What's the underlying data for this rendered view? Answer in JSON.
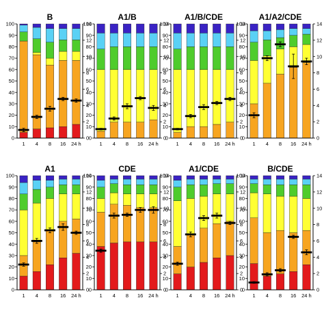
{
  "chart_data": [
    {
      "type": "bar",
      "title": "B",
      "categories": [
        "1",
        "4",
        "8",
        "16",
        "24 h"
      ],
      "ylim": [
        0,
        100
      ],
      "y2lim": [
        0,
        14
      ],
      "yticks": [
        0,
        10,
        20,
        30,
        40,
        50,
        60,
        70,
        80,
        90,
        100
      ],
      "y2ticks": [
        0,
        2,
        4,
        6,
        8,
        10,
        12,
        14
      ],
      "stack_colors": [
        "#e31a1c",
        "#f7a520",
        "#ffff33",
        "#4fcc2c",
        "#5ad1f5",
        "#3a23c4"
      ],
      "series": [
        {
          "name": "",
          "values": [
            [
              5,
              80,
              0,
              8,
              6,
              1
            ],
            [
              8,
              65,
              2,
              12,
              10,
              3
            ],
            [
              9,
              55,
              6,
              14,
              12,
              4
            ],
            [
              10,
              58,
              8,
              10,
              10,
              4
            ],
            [
              12,
              56,
              8,
              10,
              10,
              4
            ]
          ]
        }
      ],
      "markers": [
        1.0,
        2.6,
        3.6,
        4.8,
        4.6
      ],
      "marker_err": [
        0.2,
        0.2,
        0.3,
        0.2,
        0.2
      ]
    },
    {
      "type": "bar",
      "title": "A1/B",
      "categories": [
        "1",
        "4",
        "8",
        "16",
        "24 h"
      ],
      "ylim": [
        0,
        100
      ],
      "y2lim": [
        0,
        14
      ],
      "yticks": [
        0,
        10,
        20,
        30,
        40,
        50,
        60,
        70,
        80,
        90,
        100
      ],
      "y2ticks": [
        0,
        2,
        4,
        6,
        8,
        10,
        12,
        14
      ],
      "stack_colors": [
        "#e31a1c",
        "#f7a520",
        "#ffff33",
        "#4fcc2c",
        "#5ad1f5",
        "#3a23c4"
      ],
      "series": [
        {
          "name": "",
          "values": [
            [
              0,
              6,
              54,
              18,
              14,
              8
            ],
            [
              0,
              14,
              46,
              20,
              12,
              8
            ],
            [
              0,
              14,
              46,
              20,
              12,
              8
            ],
            [
              0,
              14,
              46,
              20,
              12,
              8
            ],
            [
              0,
              16,
              44,
              20,
              12,
              8
            ]
          ]
        }
      ],
      "markers": [
        1.1,
        2.4,
        3.9,
        4.9,
        3.7
      ],
      "marker_err": [
        0.1,
        0.2,
        0.3,
        0.2,
        0.3
      ]
    },
    {
      "type": "bar",
      "title": "A1/B/CDE",
      "categories": [
        "1",
        "4",
        "8",
        "16",
        "24 h"
      ],
      "ylim": [
        0,
        100
      ],
      "y2lim": [
        0,
        14
      ],
      "yticks": [
        0,
        10,
        20,
        30,
        40,
        50,
        60,
        70,
        80,
        90,
        100
      ],
      "y2ticks": [
        0,
        2,
        4,
        6,
        8,
        10,
        12,
        14
      ],
      "stack_colors": [
        "#e31a1c",
        "#f7a520",
        "#ffff33",
        "#4fcc2c",
        "#5ad1f5",
        "#3a23c4"
      ],
      "series": [
        {
          "name": "",
          "values": [
            [
              0,
              5,
              55,
              18,
              14,
              8
            ],
            [
              0,
              10,
              50,
              20,
              12,
              8
            ],
            [
              0,
              10,
              50,
              20,
              12,
              8
            ],
            [
              0,
              12,
              48,
              20,
              12,
              8
            ],
            [
              0,
              14,
              46,
              20,
              12,
              8
            ]
          ]
        }
      ],
      "markers": [
        1.1,
        2.7,
        3.8,
        4.3,
        4.8
      ],
      "marker_err": [
        0.1,
        0.2,
        0.3,
        0.2,
        0.2
      ]
    },
    {
      "type": "bar",
      "title": "A1/A2/CDE",
      "categories": [
        "1",
        "4",
        "8",
        "16",
        "24 h"
      ],
      "ylim": [
        0,
        100
      ],
      "y2lim": [
        0,
        14
      ],
      "yticks": [
        0,
        10,
        20,
        30,
        40,
        50,
        60,
        70,
        80,
        90,
        100
      ],
      "y2ticks": [
        0,
        2,
        4,
        6,
        8,
        10,
        12,
        14
      ],
      "stack_colors": [
        "#e31a1c",
        "#f7a520",
        "#ffff33",
        "#4fcc2c",
        "#5ad1f5",
        "#3a23c4"
      ],
      "series": [
        {
          "name": "",
          "values": [
            [
              0,
              30,
              38,
              16,
              10,
              6
            ],
            [
              0,
              48,
              24,
              14,
              8,
              6
            ],
            [
              0,
              56,
              22,
              10,
              7,
              5
            ],
            [
              0,
              62,
              18,
              10,
              6,
              4
            ],
            [
              0,
              66,
              16,
              9,
              5,
              4
            ]
          ]
        }
      ],
      "markers": [
        2.8,
        9.8,
        11.5,
        8.8,
        9.4
      ],
      "marker_err": [
        0.3,
        0.3,
        0.3,
        1.5,
        0.4
      ]
    },
    {
      "type": "bar",
      "title": "A1",
      "categories": [
        "1",
        "4",
        "8",
        "16",
        "24 h"
      ],
      "ylim": [
        0,
        100
      ],
      "y2lim": [
        0,
        14
      ],
      "yticks": [
        0,
        10,
        20,
        30,
        40,
        50,
        60,
        70,
        80,
        90,
        100
      ],
      "y2ticks": [
        0,
        2,
        4,
        6,
        8,
        10,
        12,
        14
      ],
      "stack_colors": [
        "#e31a1c",
        "#f7a520",
        "#ffff33",
        "#4fcc2c",
        "#5ad1f5",
        "#3a23c4"
      ],
      "series": [
        {
          "name": "",
          "values": [
            [
              12,
              18,
              40,
              14,
              10,
              6
            ],
            [
              16,
              26,
              34,
              12,
              8,
              4
            ],
            [
              22,
              30,
              28,
              10,
              6,
              4
            ],
            [
              28,
              32,
              24,
              8,
              5,
              3
            ],
            [
              32,
              30,
              22,
              8,
              5,
              3
            ]
          ]
        }
      ],
      "markers": [
        3.1,
        6.0,
        7.3,
        7.7,
        7.0
      ],
      "marker_err": [
        0.2,
        0.3,
        0.3,
        0.4,
        0.2
      ]
    },
    {
      "type": "bar",
      "title": "CDE",
      "categories": [
        "1",
        "4",
        "8",
        "16",
        "24 h"
      ],
      "ylim": [
        0,
        100
      ],
      "y2lim": [
        0,
        14
      ],
      "yticks": [
        0,
        10,
        20,
        30,
        40,
        50,
        60,
        70,
        80,
        90,
        100
      ],
      "y2ticks": [
        0,
        2,
        4,
        6,
        8,
        10,
        12,
        14
      ],
      "stack_colors": [
        "#e31a1c",
        "#f7a520",
        "#ffff33",
        "#4fcc2c",
        "#5ad1f5",
        "#3a23c4"
      ],
      "series": [
        {
          "name": "",
          "values": [
            [
              38,
              30,
              12,
              10,
              6,
              4
            ],
            [
              41,
              34,
              10,
              8,
              4,
              3
            ],
            [
              42,
              32,
              10,
              8,
              5,
              3
            ],
            [
              42,
              30,
              12,
              8,
              5,
              3
            ],
            [
              42,
              30,
              12,
              8,
              5,
              3
            ]
          ]
        }
      ],
      "markers": [
        4.8,
        9.1,
        9.2,
        9.8,
        9.8
      ],
      "marker_err": [
        0.2,
        0.3,
        0.2,
        0.3,
        0.4
      ]
    },
    {
      "type": "bar",
      "title": "A1/CDE",
      "categories": [
        "1",
        "4",
        "8",
        "16",
        "24 h"
      ],
      "ylim": [
        0,
        100
      ],
      "y2lim": [
        0,
        14
      ],
      "yticks": [
        0,
        10,
        20,
        30,
        40,
        50,
        60,
        70,
        80,
        90,
        100
      ],
      "y2ticks": [
        0,
        2,
        4,
        6,
        8,
        10,
        12,
        14
      ],
      "stack_colors": [
        "#e31a1c",
        "#f7a520",
        "#ffff33",
        "#4fcc2c",
        "#5ad1f5",
        "#3a23c4"
      ],
      "series": [
        {
          "name": "",
          "values": [
            [
              14,
              24,
              40,
              12,
              6,
              4
            ],
            [
              20,
              28,
              32,
              12,
              5,
              3
            ],
            [
              24,
              30,
              28,
              10,
              5,
              3
            ],
            [
              28,
              30,
              26,
              9,
              4,
              3
            ],
            [
              30,
              30,
              24,
              9,
              4,
              3
            ]
          ]
        }
      ],
      "markers": [
        3.2,
        6.8,
        8.8,
        9.1,
        8.2
      ],
      "marker_err": [
        0.2,
        0.3,
        0.3,
        0.3,
        0.2
      ]
    },
    {
      "type": "bar",
      "title": "B/CDE",
      "categories": [
        "1",
        "4",
        "8",
        "16",
        "24 h"
      ],
      "ylim": [
        0,
        100
      ],
      "y2lim": [
        0,
        14
      ],
      "yticks": [
        0,
        10,
        20,
        30,
        40,
        50,
        60,
        70,
        80,
        90,
        100
      ],
      "y2ticks": [
        0,
        2,
        4,
        6,
        8,
        10,
        12,
        14
      ],
      "stack_colors": [
        "#e31a1c",
        "#f7a520",
        "#ffff33",
        "#4fcc2c",
        "#5ad1f5",
        "#3a23c4"
      ],
      "series": [
        {
          "name": "",
          "values": [
            [
              23,
              40,
              22,
              8,
              4,
              3
            ],
            [
              12,
              38,
              34,
              8,
              5,
              3
            ],
            [
              14,
              38,
              30,
              10,
              5,
              3
            ],
            [
              16,
              34,
              32,
              10,
              5,
              3
            ],
            [
              22,
              30,
              28,
              12,
              5,
              3
            ]
          ]
        }
      ],
      "markers": [
        0.9,
        1.9,
        2.4,
        6.5,
        4.6
      ],
      "marker_err": [
        0.1,
        0.2,
        0.2,
        0.2,
        0.3
      ]
    }
  ]
}
